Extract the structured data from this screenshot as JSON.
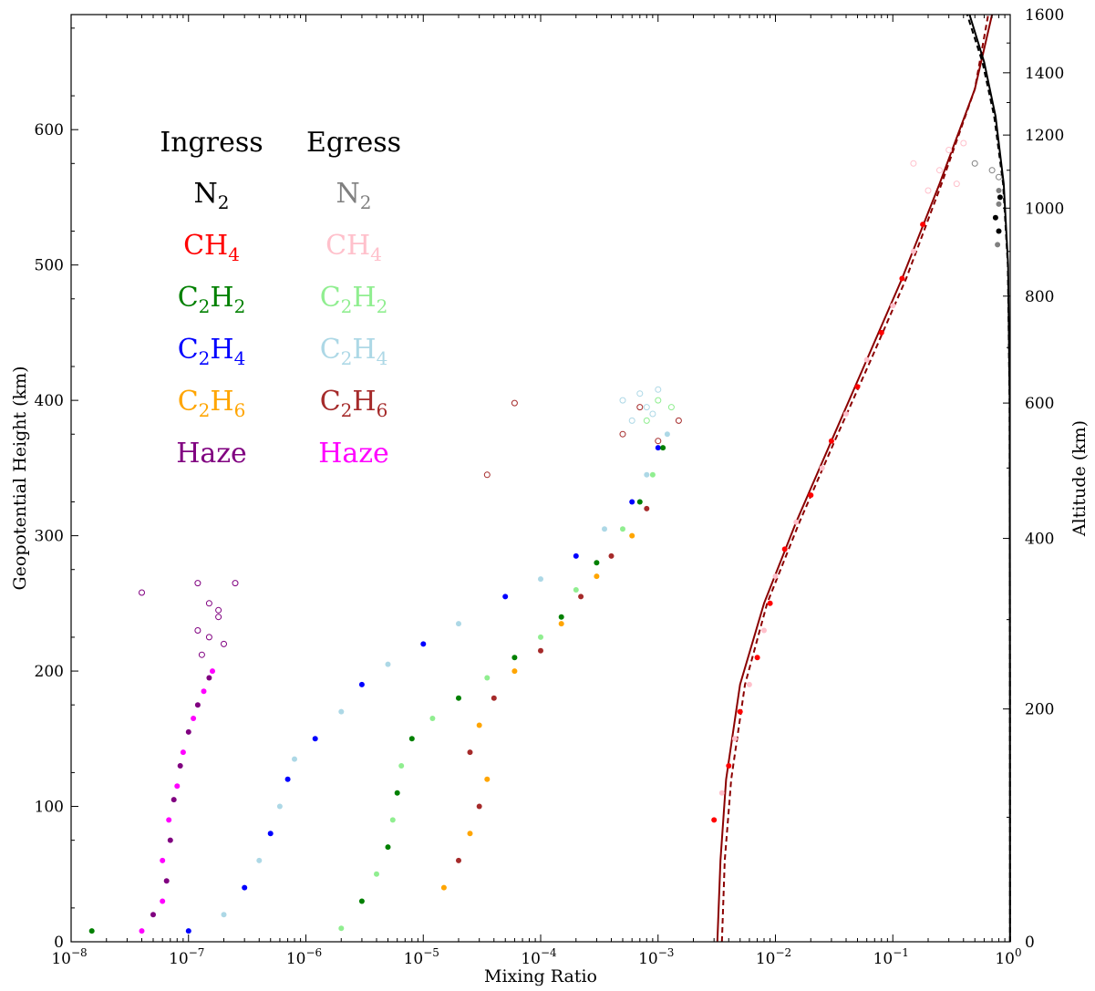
{
  "chart_data": {
    "type": "scatter",
    "xlabel": "Mixing Ratio",
    "ylabel": "Geopotential Height (km)",
    "ylabel_right": "Altitude (km)",
    "xscale": "log",
    "xlim": [
      1e-08,
      1
    ],
    "ylim": [
      0,
      685
    ],
    "x_ticks": [
      {
        "value": 1e-08,
        "label": "10",
        "exp": "−8"
      },
      {
        "value": 1e-07,
        "label": "10",
        "exp": "−7"
      },
      {
        "value": 1e-06,
        "label": "10",
        "exp": "−6"
      },
      {
        "value": 1e-05,
        "label": "10",
        "exp": "−5"
      },
      {
        "value": 0.0001,
        "label": "10",
        "exp": "−4"
      },
      {
        "value": 0.001,
        "label": "10",
        "exp": "−3"
      },
      {
        "value": 0.01,
        "label": "10",
        "exp": "−2"
      },
      {
        "value": 0.1,
        "label": "10",
        "exp": "−1"
      },
      {
        "value": 1,
        "label": "10",
        "exp": "0"
      }
    ],
    "y_ticks": [
      0,
      100,
      200,
      300,
      400,
      500,
      600
    ],
    "y2_ticks": [
      {
        "geo": 0,
        "label": "0"
      },
      {
        "geo": 172,
        "label": "200"
      },
      {
        "geo": 298,
        "label": "400"
      },
      {
        "geo": 398,
        "label": "600"
      },
      {
        "geo": 477,
        "label": "800"
      },
      {
        "geo": 542,
        "label": "1000"
      },
      {
        "geo": 596,
        "label": "1200"
      },
      {
        "geo": 642,
        "label": "1400"
      },
      {
        "geo": 685,
        "label": "1600"
      }
    ],
    "y2_minor_ticks": [
      92,
      238,
      350,
      439,
      510,
      570,
      620,
      664
    ],
    "legend": {
      "headers": [
        "Ingress",
        "Egress"
      ],
      "ingress": [
        {
          "base": "N",
          "sub": "2",
          "color": "#000000"
        },
        {
          "base": "CH",
          "sub": "4",
          "color": "#ff0000"
        },
        {
          "base": "C",
          "sub": "2",
          "base2": "H",
          "sub2": "2",
          "color": "#008000"
        },
        {
          "base": "C",
          "sub": "2",
          "base2": "H",
          "sub2": "4",
          "color": "#0000ff"
        },
        {
          "base": "C",
          "sub": "2",
          "base2": "H",
          "sub2": "6",
          "color": "#ffa500"
        },
        {
          "base": "Haze",
          "sub": "",
          "color": "#800080"
        }
      ],
      "egress": [
        {
          "base": "N",
          "sub": "2",
          "color": "#808080"
        },
        {
          "base": "CH",
          "sub": "4",
          "color": "#ffc0cb"
        },
        {
          "base": "C",
          "sub": "2",
          "base2": "H",
          "sub2": "2",
          "color": "#90ee90"
        },
        {
          "base": "C",
          "sub": "2",
          "base2": "H",
          "sub2": "4",
          "color": "#add8e6"
        },
        {
          "base": "C",
          "sub": "2",
          "base2": "H",
          "sub2": "6",
          "color": "#a52a2a"
        },
        {
          "base": "Haze",
          "sub": "",
          "color": "#ff00ff"
        }
      ]
    },
    "series": [
      {
        "name": "Haze",
        "color": "#ff00ff",
        "alt_color": "#800080",
        "points": [
          [
            4e-08,
            8
          ],
          [
            5e-08,
            20
          ],
          [
            6e-08,
            30
          ],
          [
            6.5e-08,
            45
          ],
          [
            6e-08,
            60
          ],
          [
            7e-08,
            75
          ],
          [
            6.8e-08,
            90
          ],
          [
            7.5e-08,
            105
          ],
          [
            8e-08,
            115
          ],
          [
            8.5e-08,
            130
          ],
          [
            9e-08,
            140
          ],
          [
            1e-07,
            155
          ],
          [
            1.1e-07,
            165
          ],
          [
            1.2e-07,
            175
          ],
          [
            1.35e-07,
            185
          ],
          [
            1.5e-07,
            195
          ],
          [
            1.6e-07,
            200
          ]
        ],
        "open_points": [
          [
            4e-08,
            258
          ],
          [
            1.2e-07,
            265
          ],
          [
            1.5e-07,
            250
          ],
          [
            1.8e-07,
            240
          ],
          [
            1.2e-07,
            230
          ],
          [
            1.5e-07,
            225
          ],
          [
            2e-07,
            220
          ],
          [
            2.5e-07,
            265
          ],
          [
            1.3e-07,
            212
          ],
          [
            1.8e-07,
            245
          ]
        ]
      },
      {
        "name": "C2H4",
        "color": "#0000ff",
        "alt_color": "#add8e6",
        "points": [
          [
            1e-07,
            8
          ],
          [
            2e-07,
            20
          ],
          [
            3e-07,
            40
          ],
          [
            4e-07,
            60
          ],
          [
            5e-07,
            80
          ],
          [
            6e-07,
            100
          ],
          [
            7e-07,
            120
          ],
          [
            8e-07,
            135
          ],
          [
            1.2e-06,
            150
          ],
          [
            2e-06,
            170
          ],
          [
            3e-06,
            190
          ],
          [
            5e-06,
            205
          ],
          [
            1e-05,
            220
          ],
          [
            2e-05,
            235
          ],
          [
            5e-05,
            255
          ],
          [
            0.0001,
            268
          ],
          [
            0.0002,
            285
          ],
          [
            0.00035,
            305
          ],
          [
            0.0006,
            325
          ],
          [
            0.0008,
            345
          ],
          [
            0.001,
            365
          ],
          [
            0.0012,
            375
          ]
        ],
        "open_points": [
          [
            0.0007,
            405
          ],
          [
            0.0008,
            395
          ],
          [
            0.0005,
            400
          ],
          [
            0.001,
            408
          ],
          [
            0.0006,
            385
          ],
          [
            0.0009,
            390
          ]
        ]
      },
      {
        "name": "C2H2",
        "color": "#008000",
        "alt_color": "#90ee90",
        "points": [
          [
            1.5e-08,
            8
          ],
          [
            2e-06,
            10
          ],
          [
            3e-06,
            30
          ],
          [
            4e-06,
            50
          ],
          [
            5e-06,
            70
          ],
          [
            5.5e-06,
            90
          ],
          [
            6e-06,
            110
          ],
          [
            6.5e-06,
            130
          ],
          [
            8e-06,
            150
          ],
          [
            1.2e-05,
            165
          ],
          [
            2e-05,
            180
          ],
          [
            3.5e-05,
            195
          ],
          [
            6e-05,
            210
          ],
          [
            0.0001,
            225
          ],
          [
            0.00015,
            240
          ],
          [
            0.0002,
            260
          ],
          [
            0.0003,
            280
          ],
          [
            0.0005,
            305
          ],
          [
            0.0007,
            325
          ],
          [
            0.0009,
            345
          ],
          [
            0.0011,
            365
          ]
        ],
        "open_points": [
          [
            0.001,
            400
          ],
          [
            0.0013,
            395
          ],
          [
            0.0008,
            385
          ]
        ]
      },
      {
        "name": "C2H6",
        "color": "#ffa500",
        "alt_color": "#a52a2a",
        "points": [
          [
            1.5e-05,
            40
          ],
          [
            2e-05,
            60
          ],
          [
            2.5e-05,
            80
          ],
          [
            3e-05,
            100
          ],
          [
            3.5e-05,
            120
          ],
          [
            2.5e-05,
            140
          ],
          [
            3e-05,
            160
          ],
          [
            4e-05,
            180
          ],
          [
            6e-05,
            200
          ],
          [
            0.0001,
            215
          ],
          [
            0.00015,
            235
          ],
          [
            0.00022,
            255
          ],
          [
            0.0003,
            270
          ],
          [
            0.0004,
            285
          ],
          [
            0.0006,
            300
          ],
          [
            0.0008,
            320
          ]
        ],
        "open_points": [
          [
            0.0005,
            375
          ],
          [
            0.001,
            370
          ],
          [
            0.0015,
            385
          ],
          [
            6e-05,
            398
          ],
          [
            3.5e-05,
            345
          ],
          [
            0.0007,
            395
          ]
        ]
      },
      {
        "name": "CH4",
        "color": "#ff0000",
        "alt_color": "#ffc0cb",
        "points": [
          [
            0.003,
            90
          ],
          [
            0.0035,
            110
          ],
          [
            0.004,
            130
          ],
          [
            0.0045,
            150
          ],
          [
            0.005,
            170
          ],
          [
            0.006,
            190
          ],
          [
            0.007,
            210
          ],
          [
            0.008,
            230
          ],
          [
            0.009,
            250
          ],
          [
            0.01,
            270
          ],
          [
            0.012,
            290
          ],
          [
            0.015,
            310
          ],
          [
            0.02,
            330
          ],
          [
            0.025,
            350
          ],
          [
            0.03,
            370
          ],
          [
            0.04,
            390
          ],
          [
            0.05,
            410
          ],
          [
            0.06,
            430
          ],
          [
            0.08,
            450
          ],
          [
            0.1,
            470
          ],
          [
            0.12,
            490
          ],
          [
            0.15,
            510
          ],
          [
            0.18,
            530
          ]
        ],
        "open_points": [
          [
            0.2,
            555
          ],
          [
            0.25,
            570
          ],
          [
            0.3,
            585
          ],
          [
            0.15,
            575
          ],
          [
            0.35,
            560
          ],
          [
            0.4,
            590
          ]
        ]
      },
      {
        "name": "N2",
        "color": "#000000",
        "alt_color": "#808080",
        "points": [
          [
            0.75,
            535
          ],
          [
            0.8,
            545
          ],
          [
            0.8,
            525
          ],
          [
            0.78,
            515
          ],
          [
            0.82,
            550
          ],
          [
            0.8,
            555
          ]
        ],
        "open_points": [
          [
            0.7,
            570
          ],
          [
            0.8,
            565
          ],
          [
            0.5,
            575
          ]
        ]
      }
    ],
    "curves": [
      {
        "name": "CH4 model",
        "color": "#8b0000",
        "style": "solid",
        "points": [
          [
            0.0032,
            0
          ],
          [
            0.0034,
            60
          ],
          [
            0.0038,
            120
          ],
          [
            0.005,
            190
          ],
          [
            0.008,
            250
          ],
          [
            0.015,
            310
          ],
          [
            0.03,
            370
          ],
          [
            0.06,
            430
          ],
          [
            0.12,
            490
          ],
          [
            0.25,
            560
          ],
          [
            0.5,
            630
          ],
          [
            0.7,
            685
          ]
        ]
      },
      {
        "name": "CH4 model alt",
        "color": "#8b0000",
        "style": "dashed",
        "points": [
          [
            0.0035,
            0
          ],
          [
            0.0037,
            60
          ],
          [
            0.0042,
            120
          ],
          [
            0.0055,
            190
          ],
          [
            0.0085,
            250
          ],
          [
            0.016,
            310
          ],
          [
            0.032,
            370
          ],
          [
            0.065,
            430
          ],
          [
            0.13,
            490
          ],
          [
            0.26,
            560
          ],
          [
            0.5,
            630
          ],
          [
            0.65,
            685
          ]
        ]
      },
      {
        "name": "N2 model",
        "color": "#000000",
        "style": "solid",
        "points": [
          [
            0.997,
            0
          ],
          [
            0.995,
            200
          ],
          [
            0.99,
            400
          ],
          [
            0.96,
            500
          ],
          [
            0.88,
            560
          ],
          [
            0.75,
            610
          ],
          [
            0.6,
            650
          ],
          [
            0.45,
            685
          ]
        ]
      },
      {
        "name": "N2 model alt",
        "color": "#000000",
        "style": "dashed",
        "points": [
          [
            0.996,
            0
          ],
          [
            0.994,
            200
          ],
          [
            0.988,
            400
          ],
          [
            0.955,
            500
          ],
          [
            0.87,
            560
          ],
          [
            0.73,
            610
          ],
          [
            0.58,
            650
          ],
          [
            0.43,
            685
          ]
        ]
      }
    ]
  }
}
